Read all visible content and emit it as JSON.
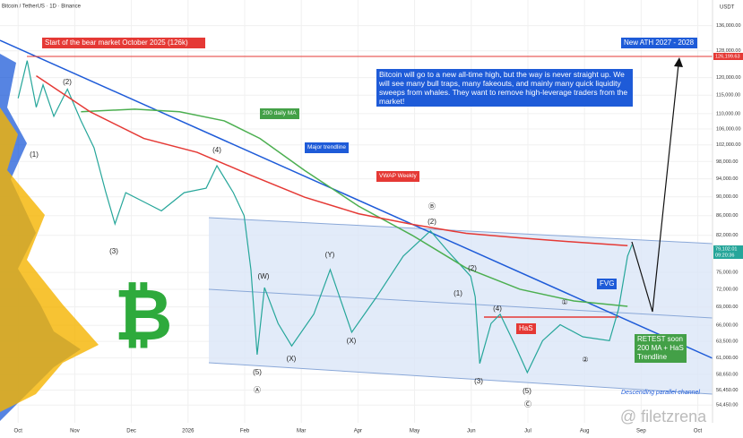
{
  "header": {
    "symbol": "Bitcoin / TetherUS · 1D · Binance",
    "currency": "USDT"
  },
  "watermark": "@ filetzrena",
  "logo": "₿",
  "chart_data": {
    "type": "line",
    "log_scale": true,
    "grid": true,
    "xlim": [
      -0.32,
      12.26
    ],
    "ylim": [
      52400,
      141600
    ],
    "xticks": [
      {
        "value": 0,
        "label": "Oct"
      },
      {
        "value": 1,
        "label": "Nov"
      },
      {
        "value": 2,
        "label": "Dec"
      },
      {
        "value": 3,
        "label": "2026"
      },
      {
        "value": 4,
        "label": "Feb"
      },
      {
        "value": 5,
        "label": "Mar"
      },
      {
        "value": 6,
        "label": "Apr"
      },
      {
        "value": 7,
        "label": "May"
      },
      {
        "value": 8,
        "label": "Jun"
      },
      {
        "value": 9,
        "label": "Jul"
      },
      {
        "value": 10,
        "label": "Aug"
      },
      {
        "value": 11,
        "label": "Sep"
      },
      {
        "value": 12,
        "label": "Oct"
      }
    ],
    "yticks": [
      {
        "value": 136000,
        "label": "136,000.00"
      },
      {
        "value": 128000,
        "label": "128,000.00"
      },
      {
        "value": 120000,
        "label": "120,000.00"
      },
      {
        "value": 115000,
        "label": "115,000.00"
      },
      {
        "value": 110000,
        "label": "110,000.00"
      },
      {
        "value": 106000,
        "label": "106,000.00"
      },
      {
        "value": 102000,
        "label": "102,000.00"
      },
      {
        "value": 98000,
        "label": "98,000.00"
      },
      {
        "value": 94000,
        "label": "94,000.00"
      },
      {
        "value": 90000,
        "label": "90,000.00"
      },
      {
        "value": 86000,
        "label": "86,000.00"
      },
      {
        "value": 82000,
        "label": "82,000.00"
      },
      {
        "value": 75000,
        "label": "75,000.00"
      },
      {
        "value": 72000,
        "label": "72,000.00"
      },
      {
        "value": 69000,
        "label": "69,000.00"
      },
      {
        "value": 66000,
        "label": "66,000.00"
      },
      {
        "value": 63500,
        "label": "63,500.00"
      },
      {
        "value": 61000,
        "label": "61,000.00"
      },
      {
        "value": 58650,
        "label": "58,650.00"
      },
      {
        "value": 56450,
        "label": "56,450.00"
      },
      {
        "value": 54450,
        "label": "54,450.00"
      }
    ],
    "series": [
      {
        "name": "BTCUSDT",
        "color": "#26a69a",
        "x": [
          0.0,
          0.16,
          0.32,
          0.44,
          0.63,
          0.87,
          1.11,
          1.34,
          1.55,
          1.71,
          1.9,
          2.22,
          2.53,
          2.93,
          3.32,
          3.51,
          3.8,
          3.99,
          4.11,
          4.22,
          4.35,
          4.59,
          4.83,
          5.22,
          5.51,
          5.89,
          6.33,
          6.8,
          7.28,
          7.59,
          7.99,
          8.07,
          8.15,
          8.35,
          8.51,
          8.78,
          8.99,
          9.26,
          9.57,
          9.97,
          10.44,
          10.6,
          10.76,
          10.84
        ],
        "values": [
          114160,
          125000,
          111700,
          117900,
          109300,
          116700,
          108100,
          101300,
          90900,
          84300,
          90900,
          88900,
          87000,
          90900,
          91900,
          97000,
          90900,
          86000,
          75500,
          61500,
          72300,
          66300,
          62800,
          67800,
          75500,
          64900,
          70700,
          78000,
          82900,
          78900,
          74300,
          70700,
          60200,
          66300,
          67800,
          62800,
          58900,
          63600,
          66100,
          64200,
          63600,
          68600,
          78000,
          80200
        ]
      },
      {
        "name": "200 daily MA",
        "color": "#4caf50",
        "x": [
          1.11,
          2.06,
          2.85,
          3.64,
          4.27,
          5.06,
          6.01,
          6.96,
          7.91,
          8.86,
          9.81,
          10.76
        ],
        "values": [
          110500,
          111200,
          110500,
          108100,
          103600,
          95900,
          88000,
          82000,
          75800,
          72000,
          70000,
          69100
        ]
      },
      {
        "name": "VWAP Weekly",
        "color": "#e53935",
        "x": [
          0.32,
          1.27,
          2.22,
          3.16,
          4.11,
          5.06,
          6.01,
          6.96,
          7.91,
          8.86,
          9.81,
          10.76
        ],
        "values": [
          120500,
          110500,
          103600,
          100200,
          94800,
          89900,
          86400,
          84200,
          82400,
          81500,
          80700,
          80000
        ]
      }
    ],
    "price_labels": {
      "ath": "126,199.63",
      "last": "79,102.01",
      "countdown": "09:20:36"
    },
    "annotations": [
      "Start of the bear market October 2025 (126k)",
      "New ATH 2027 - 2028",
      "Bitcoin will go to a new all-time high, but the way is never straight up. We will see many bull traps, many fakeouts, and mainly many quick liquidity sweeps from whales. They want to remove high-leverage traders from the market!",
      "200 daily MA",
      "Major trendline",
      "VWAP Weekly",
      "HaS",
      "FVG",
      "RETEST soon 200 MA + HaS Trendline",
      "Descending parallel channel"
    ],
    "wave_labels": [
      "(1)",
      "(2)",
      "(3)",
      "(4)",
      "(5)",
      "Ⓐ",
      "(W)",
      "(X)",
      "(Y)",
      "(X)",
      "Ⓑ",
      "(2)",
      "(2)",
      "(1)",
      "(4)",
      "(3)",
      "(5)",
      "Ⓒ",
      "①",
      "②"
    ]
  }
}
